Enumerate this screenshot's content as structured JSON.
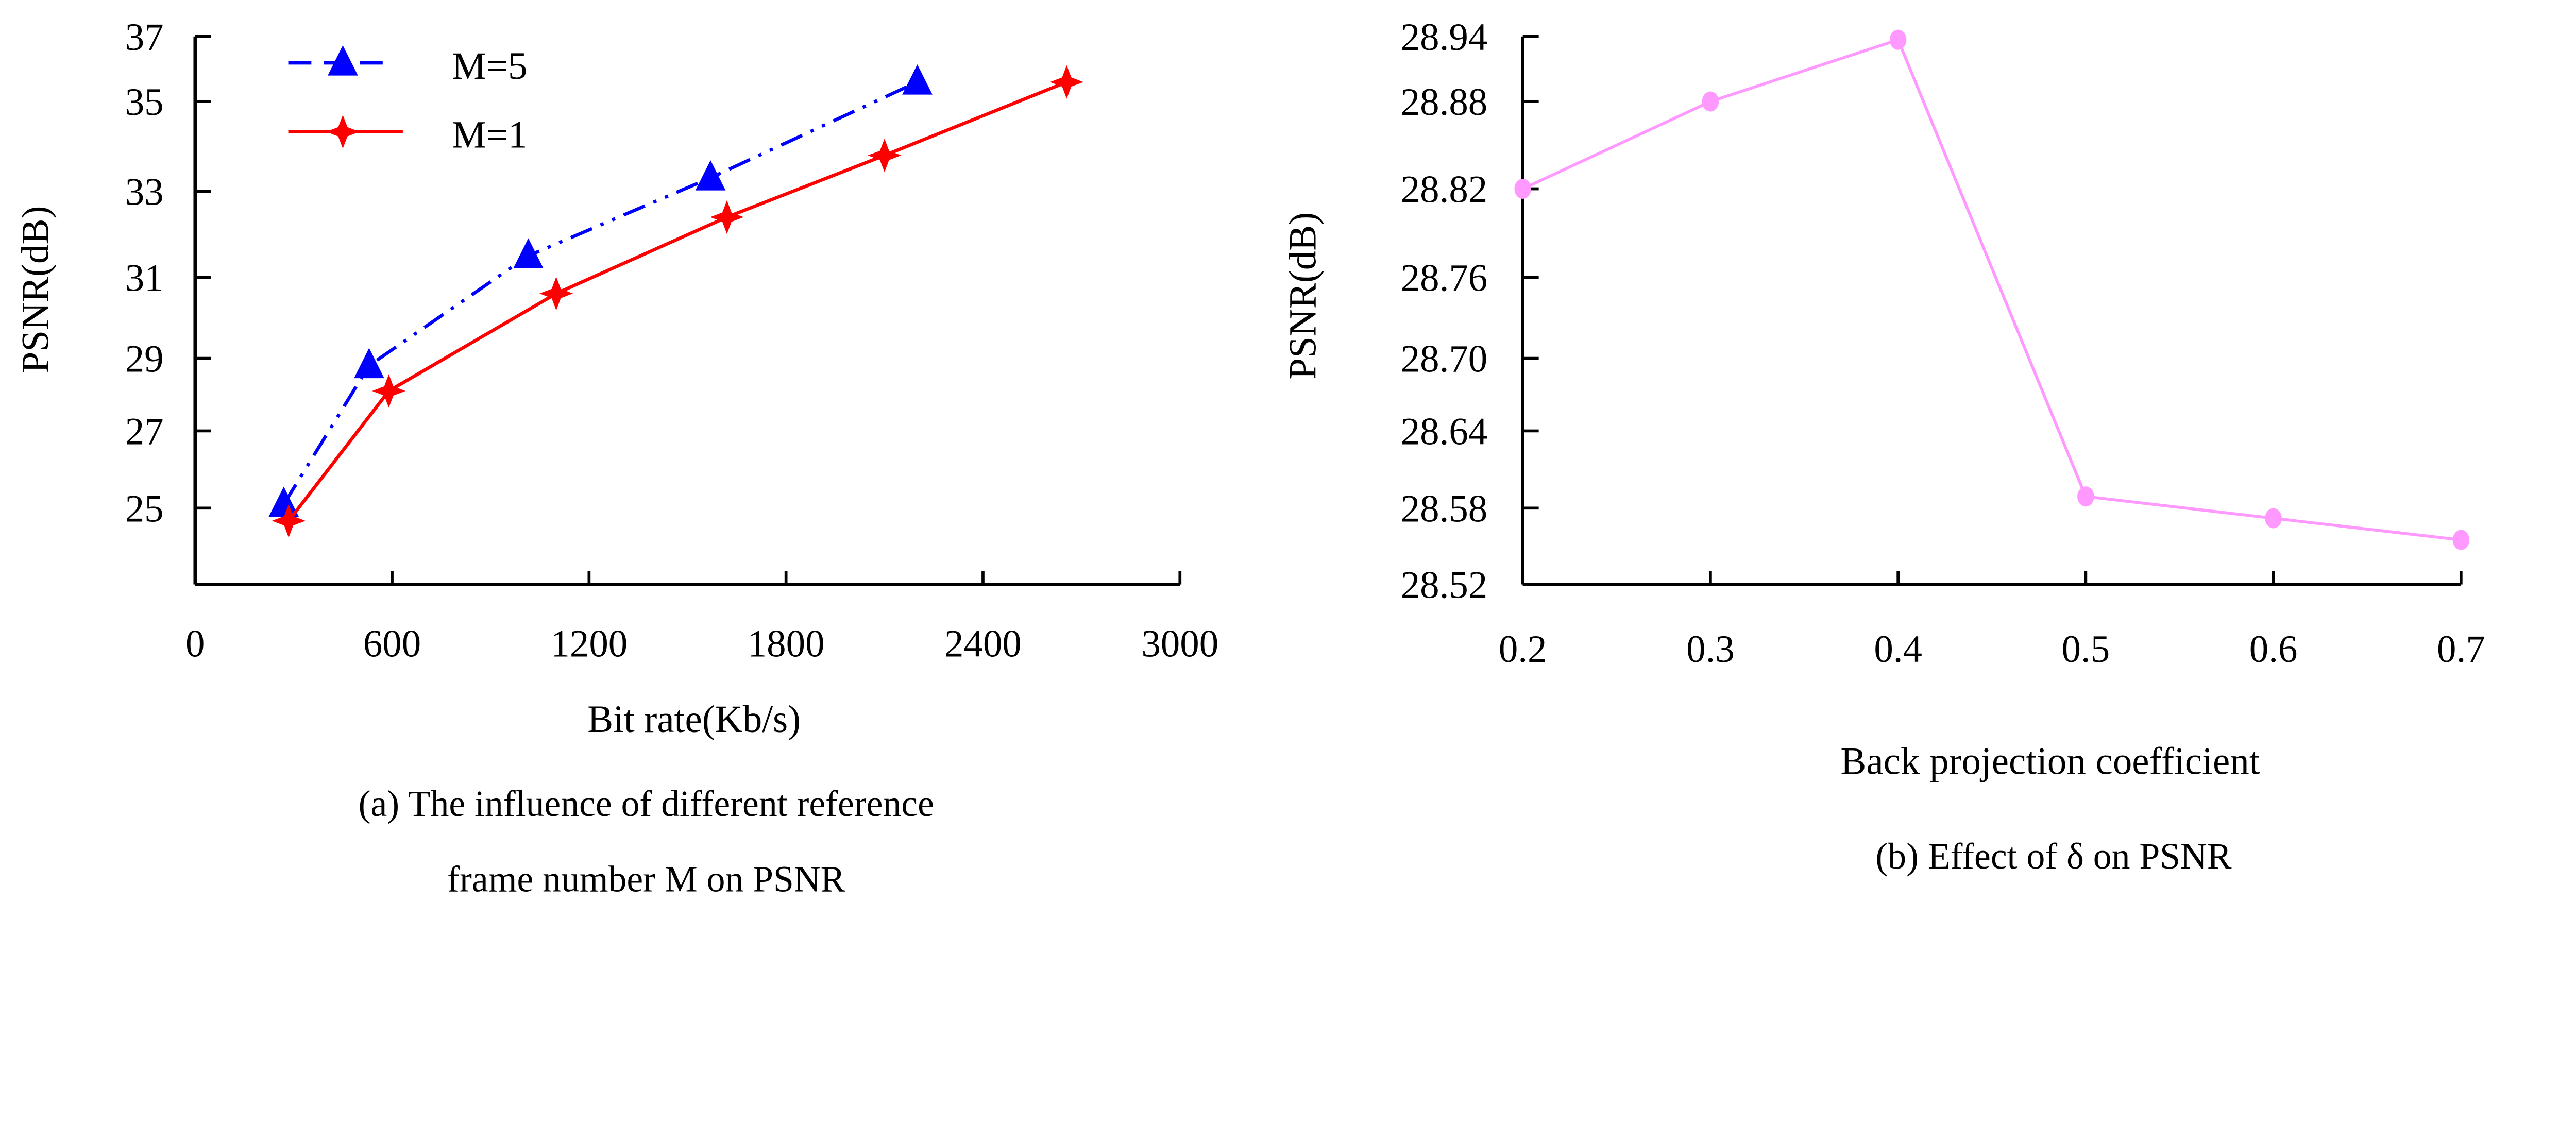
{
  "chart_data": [
    {
      "type": "line",
      "caption": [
        "(a) The influence of different reference",
        "frame number M on PSNR"
      ],
      "xlabel": "Bit rate(Kb/s)",
      "ylabel": "PSNR(dB)",
      "xlim": [
        0,
        3000
      ],
      "ylim": [
        23.2,
        37
      ],
      "xticks": [
        "0",
        "600",
        "1200",
        "1800",
        "2400",
        "3000"
      ],
      "yticks": [
        "37",
        "35",
        "33",
        "31",
        "29",
        "27",
        "25"
      ],
      "legend_position": "top-left",
      "series": [
        {
          "name": "M=5",
          "color": "#0000ff",
          "marker": "triangle",
          "line": "dash-dot-dot",
          "x": [
            270,
            530,
            1015,
            1570,
            2200
          ],
          "y": [
            25.1,
            28.8,
            31.5,
            33.3,
            35.6
          ]
        },
        {
          "name": "M=1",
          "color": "#ff0000",
          "marker": "star",
          "line": "solid",
          "x": [
            285,
            590,
            1100,
            1620,
            2100,
            2655
          ],
          "y": [
            24.7,
            28.1,
            30.6,
            32.4,
            33.8,
            35.6
          ]
        }
      ]
    },
    {
      "type": "line",
      "caption": [
        "(b) Effect of δ on PSNR"
      ],
      "xlabel": "Back projection coefficient",
      "ylabel": "PSNR(dB)",
      "xlim": [
        0.2,
        0.7
      ],
      "ylim": [
        28.52,
        28.94
      ],
      "xticks": [
        "0.2",
        "0.3",
        "0.4",
        "0.5",
        "0.6",
        "0.7"
      ],
      "yticks": [
        "28.94",
        "28.88",
        "28.82",
        "28.76",
        "28.70",
        "28.64",
        "28.58",
        "28.52"
      ],
      "series": [
        {
          "name": "PSNR",
          "color": "#ff99ff",
          "marker": "circle",
          "line": "solid",
          "x": [
            0.2,
            0.3,
            0.4,
            0.5,
            0.6,
            0.7
          ],
          "y": [
            28.82,
            28.88,
            28.937,
            28.589,
            28.572,
            28.555
          ]
        }
      ]
    }
  ]
}
